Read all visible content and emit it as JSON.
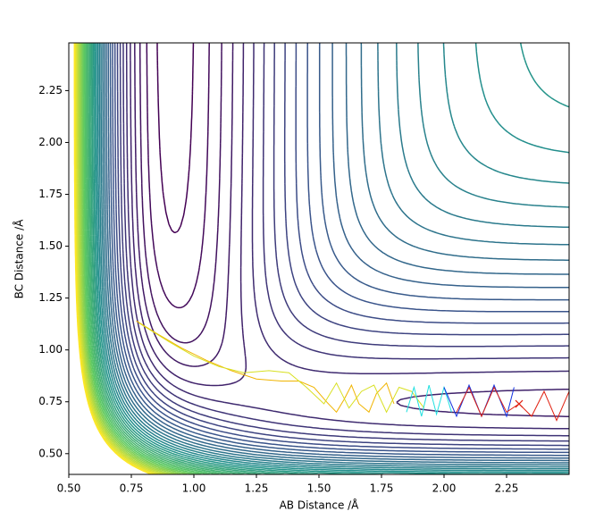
{
  "chart_data": {
    "type": "contour",
    "xlabel": "AB Distance /Å",
    "ylabel": "BC Distance /Å",
    "xlim": [
      0.5,
      2.5
    ],
    "ylim": [
      0.4,
      2.48
    ],
    "xticks": [
      {
        "value": 0.5,
        "label": "0.50"
      },
      {
        "value": 0.75,
        "label": "0.75"
      },
      {
        "value": 1.0,
        "label": "1.00"
      },
      {
        "value": 1.25,
        "label": "1.25"
      },
      {
        "value": 1.5,
        "label": "1.50"
      },
      {
        "value": 1.75,
        "label": "1.75"
      },
      {
        "value": 2.0,
        "label": "2.00"
      },
      {
        "value": 2.25,
        "label": "2.25"
      }
    ],
    "yticks": [
      {
        "value": 0.5,
        "label": "0.50"
      },
      {
        "value": 0.75,
        "label": "0.75"
      },
      {
        "value": 1.0,
        "label": "1.00"
      },
      {
        "value": 1.25,
        "label": "1.25"
      },
      {
        "value": 1.5,
        "label": "1.50"
      },
      {
        "value": 1.75,
        "label": "1.75"
      },
      {
        "value": 2.0,
        "label": "2.00"
      },
      {
        "value": 2.25,
        "label": "2.25"
      }
    ],
    "series": [
      {
        "color": "#f0b400",
        "x": [
          0.77,
          0.85,
          0.95,
          1.05,
          1.15,
          1.25,
          1.35,
          1.42,
          1.48,
          1.53,
          1.57,
          1.6,
          1.63,
          1.66,
          1.7,
          1.73,
          1.77,
          1.8
        ],
        "values": [
          1.14,
          1.08,
          1.01,
          0.95,
          0.9,
          0.86,
          0.85,
          0.85,
          0.82,
          0.75,
          0.7,
          0.76,
          0.83,
          0.74,
          0.7,
          0.79,
          0.84,
          0.74
        ]
      },
      {
        "color": "#d8e020",
        "x": [
          0.78,
          0.9,
          1.0,
          1.1,
          1.2,
          1.3,
          1.38,
          1.45,
          1.52,
          1.57,
          1.62,
          1.67,
          1.72,
          1.77,
          1.82,
          1.87,
          1.92
        ],
        "values": [
          1.13,
          1.04,
          0.97,
          0.92,
          0.89,
          0.9,
          0.89,
          0.82,
          0.74,
          0.84,
          0.72,
          0.8,
          0.83,
          0.7,
          0.82,
          0.8,
          0.72
        ]
      },
      {
        "color": "#20e0e0",
        "x": [
          1.85,
          1.88,
          1.91,
          1.94,
          1.97,
          2.0,
          2.03
        ],
        "values": [
          0.7,
          0.82,
          0.68,
          0.83,
          0.69,
          0.82,
          0.7
        ]
      },
      {
        "color": "#1030e0",
        "x": [
          2.0,
          2.05,
          2.1,
          2.15,
          2.2,
          2.25,
          2.28
        ],
        "values": [
          0.82,
          0.68,
          0.83,
          0.68,
          0.83,
          0.68,
          0.82
        ]
      },
      {
        "color": "#e02010",
        "x": [
          2.05,
          2.1,
          2.15,
          2.2,
          2.25,
          2.3,
          2.35,
          2.4,
          2.45,
          2.5
        ],
        "values": [
          0.7,
          0.82,
          0.68,
          0.82,
          0.7,
          0.74,
          0.68,
          0.8,
          0.66,
          0.8
        ]
      }
    ],
    "marker": {
      "x": 2.3,
      "y": 0.74,
      "color": "#e02010"
    }
  }
}
